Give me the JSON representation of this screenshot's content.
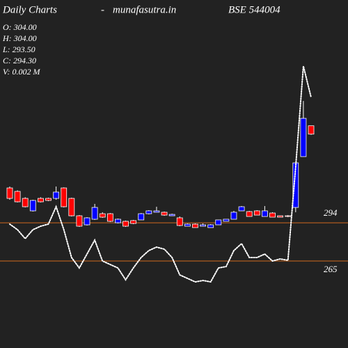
{
  "chart_data": {
    "type": "candlestick",
    "title": "Daily Charts",
    "separator": "-",
    "site": "munafasutra.in",
    "symbol": "BSE 544004",
    "ohlc_labels": [
      "O: 304.00",
      "H: 304.00",
      "L: 293.50",
      "C: 294.30",
      "V: 0.002  M"
    ],
    "ylim": [
      46,
      450
    ],
    "up_color": "#0000ff",
    "down_color": "#ff0000",
    "candles": {
      "open": [
        231.8,
        227.8,
        219.7,
        205.2,
        219.7,
        219.7,
        219.7,
        231.8,
        219.7,
        199.5,
        189.0,
        195.5,
        201.9,
        201.9,
        191.4,
        193.1,
        193.9,
        194.7,
        201.9,
        203.6,
        203.6,
        199.5,
        197.1,
        187.4,
        189.8,
        187.4,
        185.8,
        189.0,
        193.1,
        195.5,
        205.2,
        204.4,
        205.2,
        198.7,
        202.7,
        199.5,
        199.5,
        209.2,
        268.2,
        304
      ],
      "high": [
        233.5,
        229.0,
        221.0,
        218.1,
        221.0,
        220.5,
        233.5,
        232.5,
        220.5,
        200.3,
        197.9,
        213.3,
        203.6,
        202.7,
        196.3,
        193.9,
        194.7,
        202.7,
        206.0,
        210.0,
        204.4,
        201.9,
        198.7,
        190.6,
        190.6,
        190.6,
        189.8,
        194.7,
        195.5,
        205.2,
        210.8,
        205.2,
        206.0,
        210.8,
        203.6,
        199.5,
        200.3,
        260.9,
        332.8,
        304
      ],
      "low": [
        218.1,
        215.0,
        209.2,
        204.4,
        215.0,
        216.5,
        218.1,
        209.2,
        198.7,
        186.6,
        188.2,
        194.7,
        197.1,
        192.3,
        190.6,
        186.6,
        189.8,
        194.7,
        201.1,
        203.6,
        199.5,
        199.5,
        187.4,
        187.4,
        185.8,
        187.4,
        185.8,
        189.0,
        193.1,
        195.5,
        205.2,
        198.7,
        200.3,
        198.7,
        197.9,
        197.9,
        197.9,
        203.6,
        268.2,
        293.5
      ],
      "close": [
        219.7,
        215.7,
        210.0,
        217.3,
        215.7,
        217.3,
        227.0,
        210.0,
        199.5,
        187.4,
        197.1,
        209.2,
        197.9,
        193.1,
        195.5,
        187.4,
        190.6,
        201.9,
        205.2,
        205.2,
        200.3,
        201.1,
        188.2,
        189.8,
        185.8,
        189.0,
        189.0,
        194.7,
        195.5,
        203.6,
        210.0,
        198.7,
        200.3,
        205.2,
        197.9,
        197.9,
        198.7,
        260.9,
        312.6,
        294.3
      ]
    },
    "indicator": {
      "color": "#ffffff",
      "values": [
        189.8,
        183.4,
        172.9,
        183.4,
        187.4,
        189.8,
        210.0,
        183.4,
        151.0,
        138.9,
        155.1,
        171.2,
        147.0,
        143.0,
        138.9,
        125.2,
        138.9,
        151.0,
        159.1,
        163.2,
        160.7,
        151.0,
        130.8,
        126.8,
        122.8,
        124.4,
        122.8,
        138.9,
        140.5,
        159.1,
        167.2,
        151.0,
        151.0,
        155.1,
        147.0,
        149.4,
        147.8,
        256.1,
        373.2,
        336.9
      ]
    },
    "y2lim": [
      199,
      463
    ],
    "reference_lines": [
      {
        "value": 294,
        "color": "#d2691e",
        "axis": "y2"
      },
      {
        "value": 265,
        "color": "#d2691e",
        "axis": "y2"
      }
    ]
  }
}
